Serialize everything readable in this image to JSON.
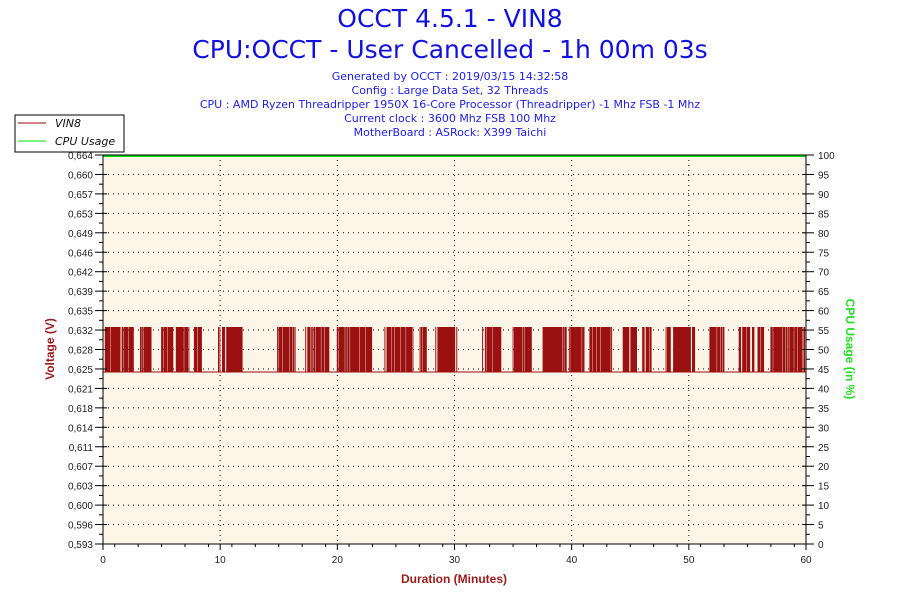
{
  "header": {
    "title": "OCCT 4.5.1 - VIN8",
    "subtitle": "CPU:OCCT - User Cancelled - 1h 00m 03s",
    "info": [
      "Generated by OCCT : 2019/03/15 14:32:58",
      "Config : Large Data Set, 32 Threads",
      "CPU : AMD Ryzen Threadripper 1950X 16-Core Processor (Threadripper) -1 Mhz FSB -1 Mhz",
      "Current clock : 3600 Mhz FSB 100 Mhz",
      "MotherBoard : ASRock: X399 Taichi"
    ]
  },
  "chart_data": {
    "type": "line",
    "xlabel": "Duration (Minutes)",
    "ylabel_left": "Voltage (V)",
    "ylabel_right": "CPU Usage (in %)",
    "xlim": [
      0,
      60
    ],
    "x_ticks": [
      "0",
      "10",
      "20",
      "30",
      "40",
      "50",
      "60"
    ],
    "ylim_left": [
      0.593,
      0.664
    ],
    "y_ticks_left": [
      "0,593",
      "0,596",
      "0,600",
      "0,603",
      "0,607",
      "0,611",
      "0,614",
      "0,618",
      "0,621",
      "0,625",
      "0,628",
      "0,632",
      "0,635",
      "0,639",
      "0,642",
      "0,646",
      "0,649",
      "0,653",
      "0,657",
      "0,660",
      "0,664"
    ],
    "ylim_right": [
      0,
      100
    ],
    "y_ticks_right": [
      "0",
      "5",
      "10",
      "15",
      "20",
      "25",
      "30",
      "35",
      "40",
      "45",
      "50",
      "55",
      "60",
      "65",
      "70",
      "75",
      "80",
      "85",
      "90",
      "95",
      "100"
    ],
    "grid": true,
    "legend_position": "top-left",
    "series": [
      {
        "name": "VIN8",
        "axis": "left",
        "color": "#9b1010",
        "low_value": 0.6244,
        "high_value": 0.6326,
        "toggling_intervals_minutes": [
          [
            0.2,
            2.6
          ],
          [
            3.2,
            4.1
          ],
          [
            5.0,
            7.4
          ],
          [
            7.8,
            8.4
          ],
          [
            9.8,
            10.0
          ],
          [
            10.2,
            11.9
          ],
          [
            14.9,
            16.4
          ],
          [
            17.3,
            19.3
          ],
          [
            20.0,
            23.0
          ],
          [
            24.0,
            26.5
          ],
          [
            27.0,
            27.6
          ],
          [
            28.4,
            30.2
          ],
          [
            32.4,
            34.0
          ],
          [
            35.0,
            36.6
          ],
          [
            37.5,
            39.6
          ],
          [
            39.8,
            41.1
          ],
          [
            41.5,
            43.5
          ],
          [
            44.4,
            45.6
          ],
          [
            46.0,
            46.8
          ],
          [
            48.0,
            48.5
          ],
          [
            48.7,
            50.6
          ],
          [
            51.8,
            53.1
          ],
          [
            54.3,
            55.6
          ],
          [
            55.9,
            56.4
          ],
          [
            57.0,
            60.0
          ]
        ]
      },
      {
        "name": "CPU Usage",
        "axis": "right",
        "color": "#00e000",
        "x": [
          0,
          60
        ],
        "values": [
          100,
          100
        ]
      }
    ]
  }
}
